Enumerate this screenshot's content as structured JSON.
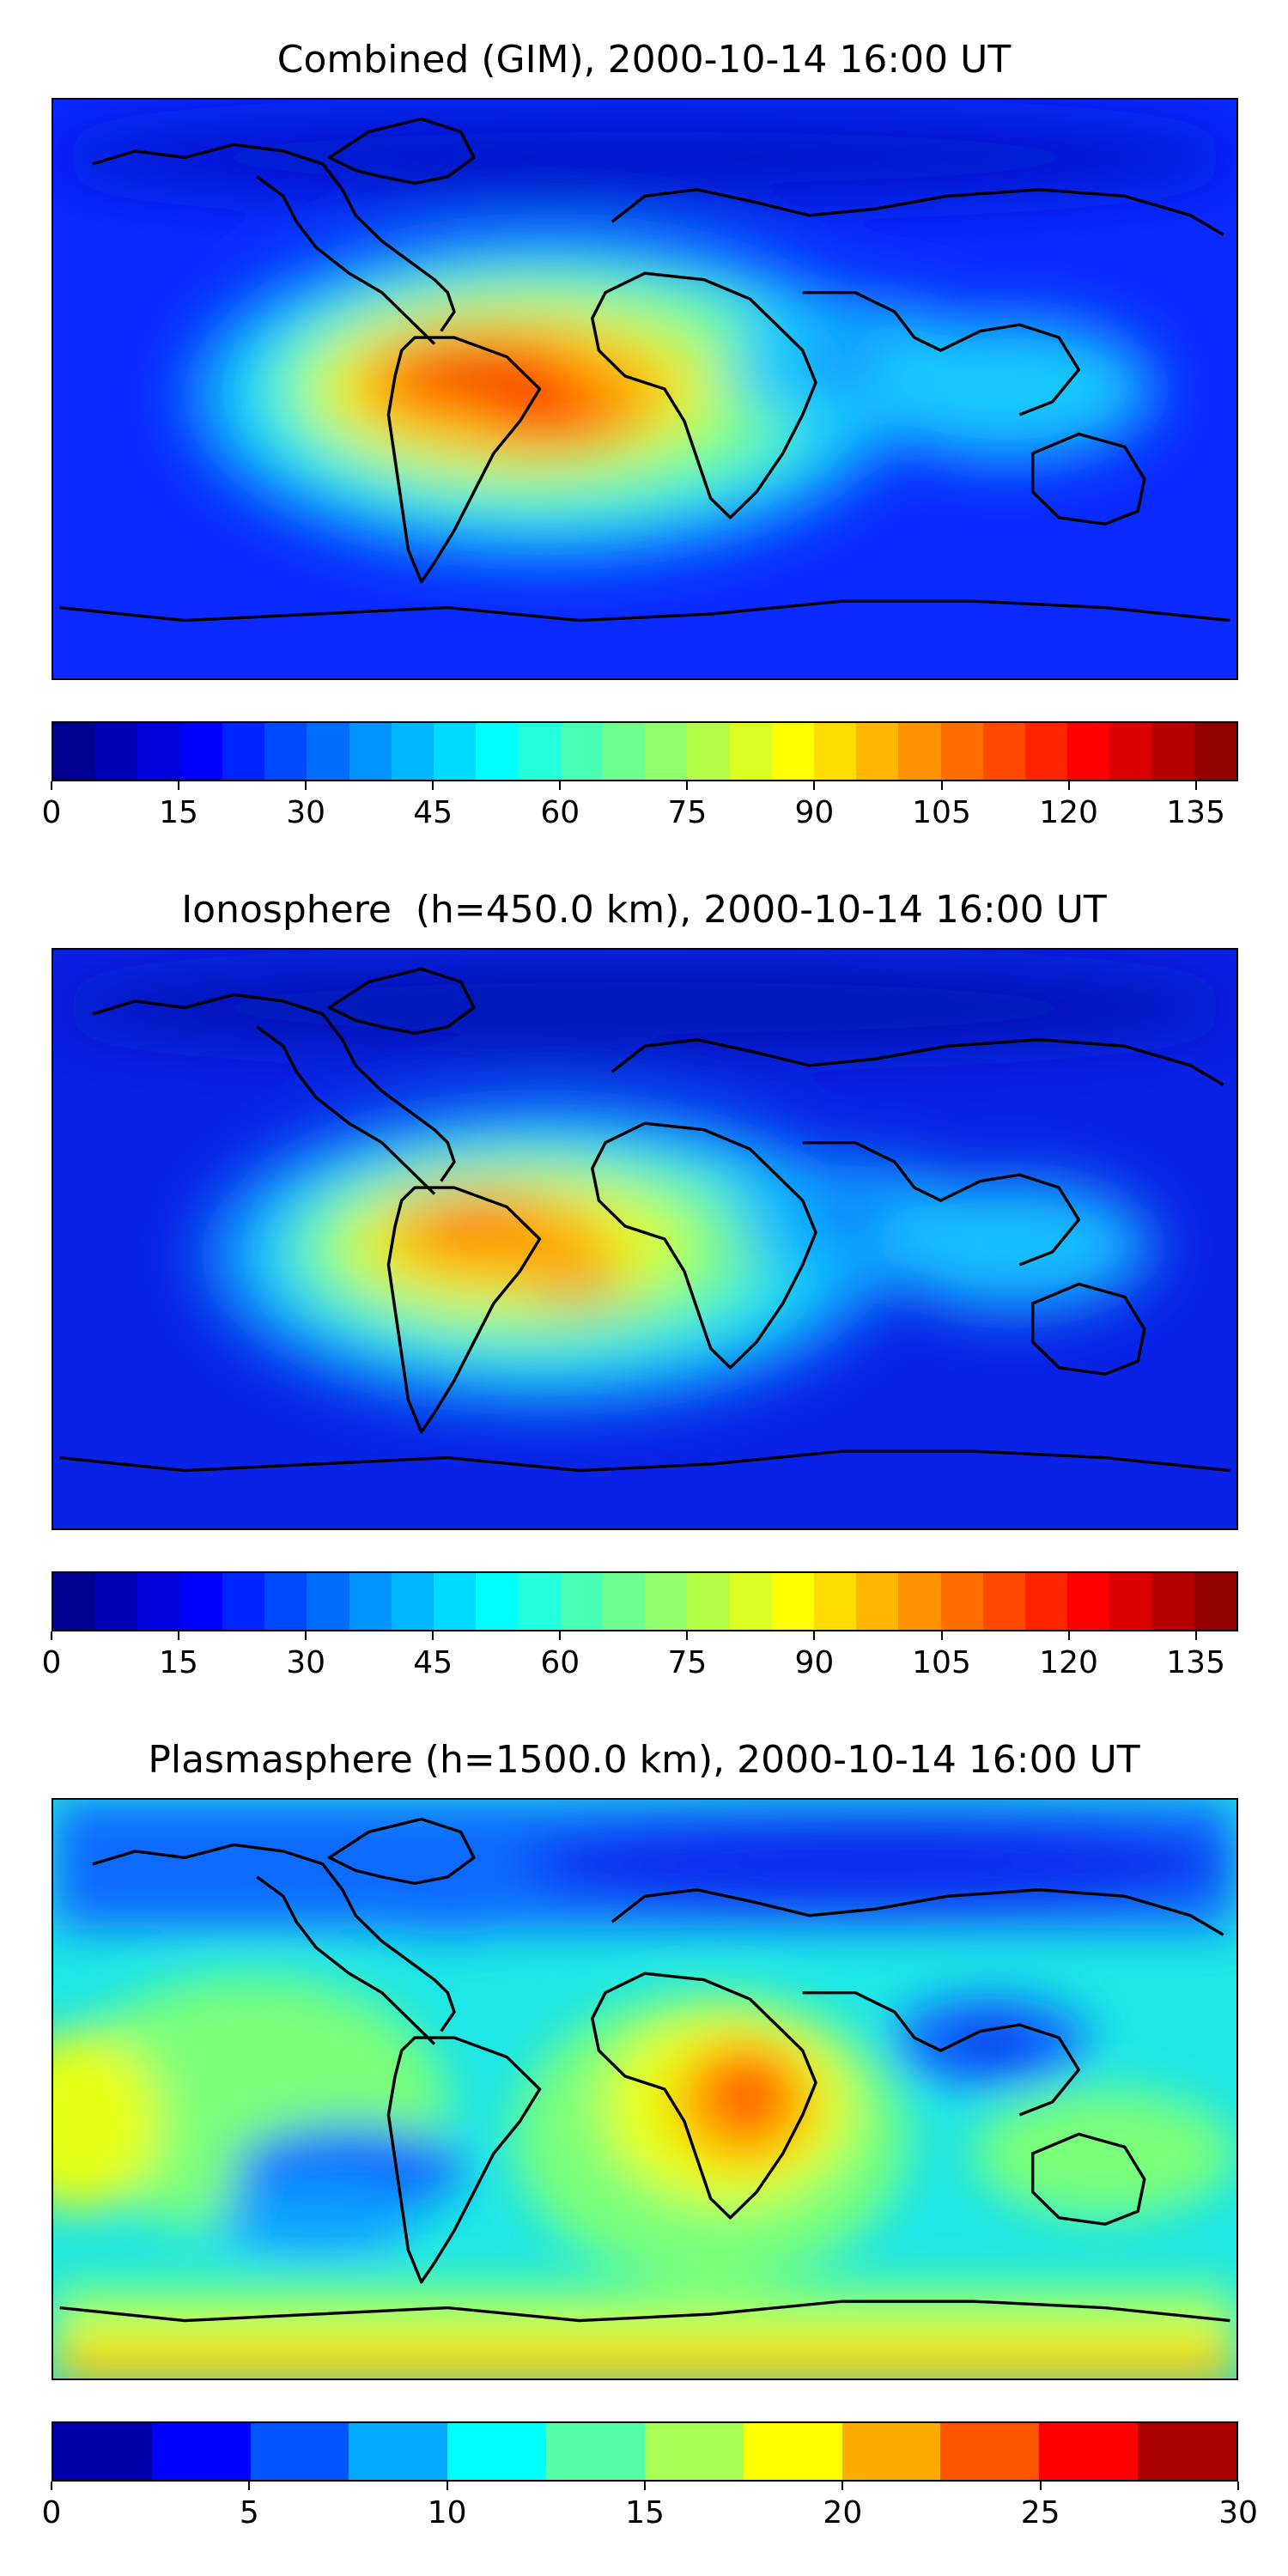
{
  "chart_data": [
    {
      "type": "heatmap",
      "title": "Combined (GIM), 2000-10-14 16:00 UT",
      "colorbar": {
        "min": 0,
        "max": 140,
        "levels": 28,
        "ticks": [
          0,
          15,
          30,
          45,
          60,
          75,
          90,
          105,
          120,
          135
        ]
      },
      "features": [
        {
          "lon": -56,
          "lat": 6,
          "value": 125
        },
        {
          "lon": -40,
          "lat": 8,
          "value": 120
        },
        {
          "lon": -25,
          "lat": -3,
          "value": 115
        },
        {
          "lon": -40,
          "lat": -15,
          "value": 110
        },
        {
          "lon": 65,
          "lat": 8,
          "value": 30
        },
        {
          "lon": 120,
          "lat": -5,
          "value": 50
        }
      ]
    },
    {
      "type": "heatmap",
      "title": "Ionosphere  (h=450.0 km), 2000-10-14 16:00 UT",
      "colorbar": {
        "min": 0,
        "max": 140,
        "levels": 28,
        "ticks": [
          0,
          15,
          30,
          45,
          60,
          75,
          90,
          105,
          120,
          135
        ]
      },
      "features": [
        {
          "lon": -52,
          "lat": 6,
          "value": 105
        },
        {
          "lon": -35,
          "lat": -15,
          "value": 100
        },
        {
          "lon": 65,
          "lat": 5,
          "value": 25
        },
        {
          "lon": 120,
          "lat": -5,
          "value": 45
        }
      ]
    },
    {
      "type": "heatmap",
      "title": "Plasmasphere (h=1500.0 km), 2000-10-14 16:00 UT",
      "colorbar": {
        "min": 0,
        "max": 30,
        "levels": 12,
        "ticks": [
          0,
          5,
          10,
          15,
          20,
          25,
          30
        ]
      },
      "features": [
        {
          "lon": 30,
          "lat": 0,
          "value": 25
        },
        {
          "lon": 105,
          "lat": 22,
          "value": 5
        },
        {
          "lon": -90,
          "lat": -20,
          "value": 7
        },
        {
          "lon": -175,
          "lat": -5,
          "value": 18
        },
        {
          "lon": 0,
          "lat": -85,
          "value": 22
        }
      ]
    }
  ]
}
